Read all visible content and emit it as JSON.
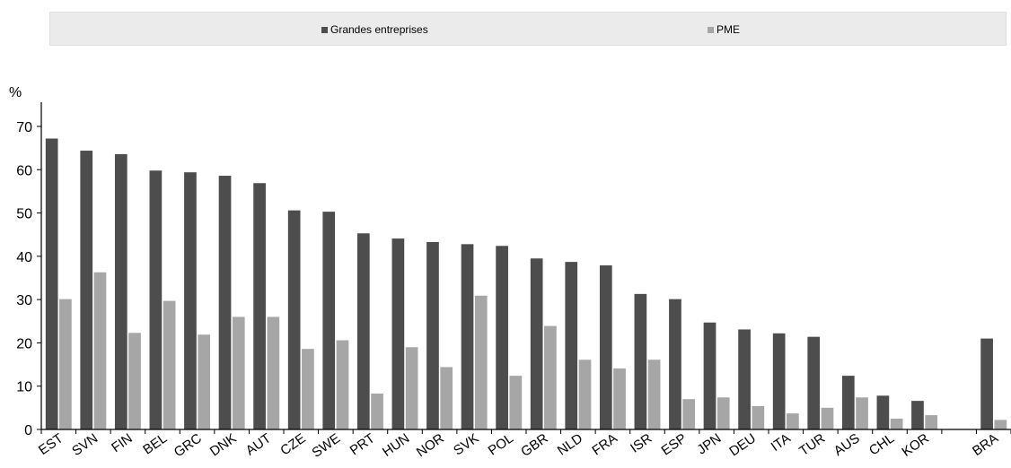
{
  "chart_data": {
    "type": "bar",
    "ylabel": "%",
    "ylim": [
      0,
      70
    ],
    "yticks": [
      0,
      10,
      20,
      30,
      40,
      50,
      60,
      70
    ],
    "legend_position": "top",
    "categories": [
      "EST",
      "SVN",
      "FIN",
      "BEL",
      "GRC",
      "DNK",
      "AUT",
      "CZE",
      "SWE",
      "PRT",
      "HUN",
      "NOR",
      "SVK",
      "POL",
      "GBR",
      "NLD",
      "FRA",
      "ISR",
      "ESP",
      "JPN",
      "DEU",
      "ITA",
      "TUR",
      "AUS",
      "CHL",
      "KOR",
      "",
      "BRA"
    ],
    "series": [
      {
        "name": "Grandes entreprises",
        "color": "#4d4d4d",
        "values": [
          67.2,
          64.4,
          63.6,
          59.8,
          59.4,
          58.6,
          56.9,
          50.6,
          50.3,
          45.3,
          44.1,
          43.3,
          42.8,
          42.4,
          39.5,
          38.7,
          37.9,
          31.3,
          30.1,
          24.7,
          23.1,
          22.2,
          21.4,
          12.4,
          7.8,
          6.6,
          null,
          21.0
        ]
      },
      {
        "name": "PME",
        "color": "#a6a6a6",
        "values": [
          30.1,
          36.3,
          22.3,
          29.7,
          21.9,
          26.0,
          26.0,
          18.6,
          20.6,
          8.3,
          19.0,
          14.4,
          30.9,
          12.4,
          23.9,
          16.1,
          14.1,
          16.1,
          7.0,
          7.4,
          5.4,
          3.7,
          5.0,
          7.4,
          2.5,
          3.3,
          null,
          2.2
        ]
      }
    ]
  }
}
